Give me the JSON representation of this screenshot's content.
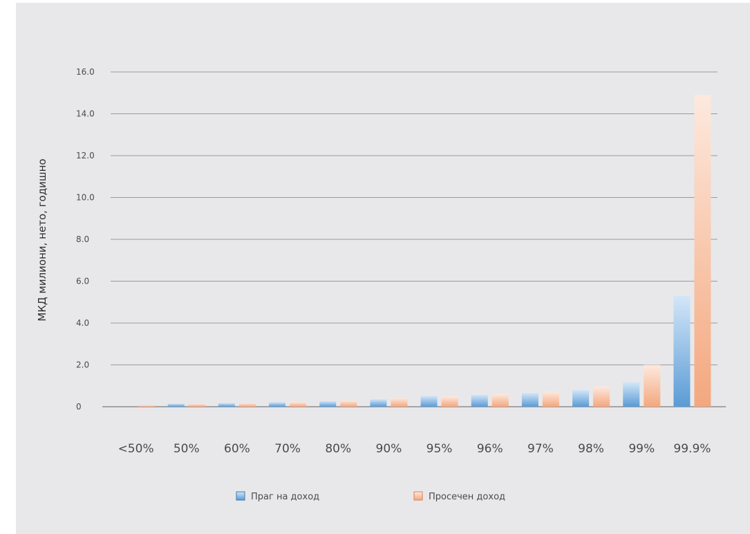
{
  "chart_data": {
    "type": "bar",
    "title": "",
    "xlabel": "",
    "ylabel": "МКД милиони, нето, годишно",
    "ylim": [
      0,
      16
    ],
    "yticks": [
      "0",
      "2.0",
      "4.0",
      "6.0",
      "8.0",
      "10.0",
      "12.0",
      "14.0",
      "16.0"
    ],
    "ytick_values": [
      0,
      2,
      4,
      6,
      8,
      10,
      12,
      14,
      16
    ],
    "categories": [
      "<50%",
      "50%",
      "60%",
      "70%",
      "80%",
      "90%",
      "95%",
      "96%",
      "97%",
      "98%",
      "99%",
      "99.9%"
    ],
    "series": [
      {
        "name": "Праг на доход",
        "color": "#5a9bd5",
        "values": [
          0,
          0.15,
          0.18,
          0.22,
          0.27,
          0.36,
          0.52,
          0.57,
          0.66,
          0.8,
          1.17,
          5.3
        ]
      },
      {
        "name": "Просечен доход",
        "color": "#f4a77e",
        "values": [
          0.08,
          0.15,
          0.18,
          0.23,
          0.3,
          0.42,
          0.5,
          0.61,
          0.72,
          0.97,
          2.0,
          14.9
        ]
      }
    ],
    "grid": true,
    "legend_position": "bottom"
  }
}
